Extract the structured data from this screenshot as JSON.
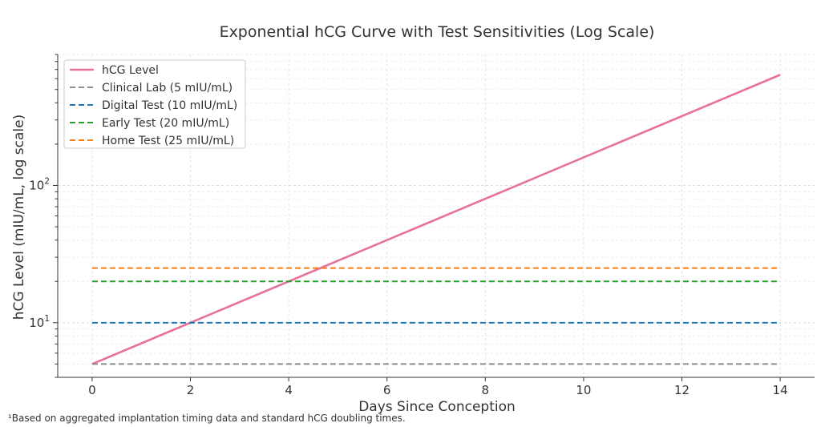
{
  "chart_data": {
    "type": "line",
    "title": "Exponential hCG Curve with Test Sensitivities (Log Scale)",
    "xlabel": "Days Since Conception",
    "ylabel": "hCG Level (mIU/mL, log scale)",
    "xlim": [
      -0.7,
      14.7
    ],
    "ylim": [
      4.0,
      900
    ],
    "yscale": "log",
    "x_ticks": [
      0,
      2,
      4,
      6,
      8,
      10,
      12,
      14
    ],
    "y_major_ticks": [
      {
        "value": 10,
        "base": "10",
        "exp": "1"
      },
      {
        "value": 100,
        "base": "10",
        "exp": "2"
      }
    ],
    "grid": true,
    "legend_position": "top-left",
    "series": [
      {
        "name": "hCG Level",
        "color": "#e8719b",
        "style": "solid",
        "x": [
          0,
          14
        ],
        "y": [
          5,
          640
        ]
      },
      {
        "name": "Clinical Lab (5 mIU/mL)",
        "color": "#8c8c8c",
        "style": "dashed",
        "x": [
          0,
          14
        ],
        "y": [
          5,
          5
        ]
      },
      {
        "name": "Digital Test (10 mIU/mL)",
        "color": "#1f77b4",
        "style": "dashed",
        "x": [
          0,
          14
        ],
        "y": [
          10,
          10
        ]
      },
      {
        "name": "Early Test (20 mIU/mL)",
        "color": "#2ca02c",
        "style": "dashed",
        "x": [
          0,
          14
        ],
        "y": [
          20,
          20
        ]
      },
      {
        "name": "Home Test (25 mIU/mL)",
        "color": "#ff7f0e",
        "style": "dashed",
        "x": [
          0,
          14
        ],
        "y": [
          25,
          25
        ]
      }
    ]
  },
  "footnote": "¹Based on aggregated implantation timing data and standard hCG doubling times."
}
